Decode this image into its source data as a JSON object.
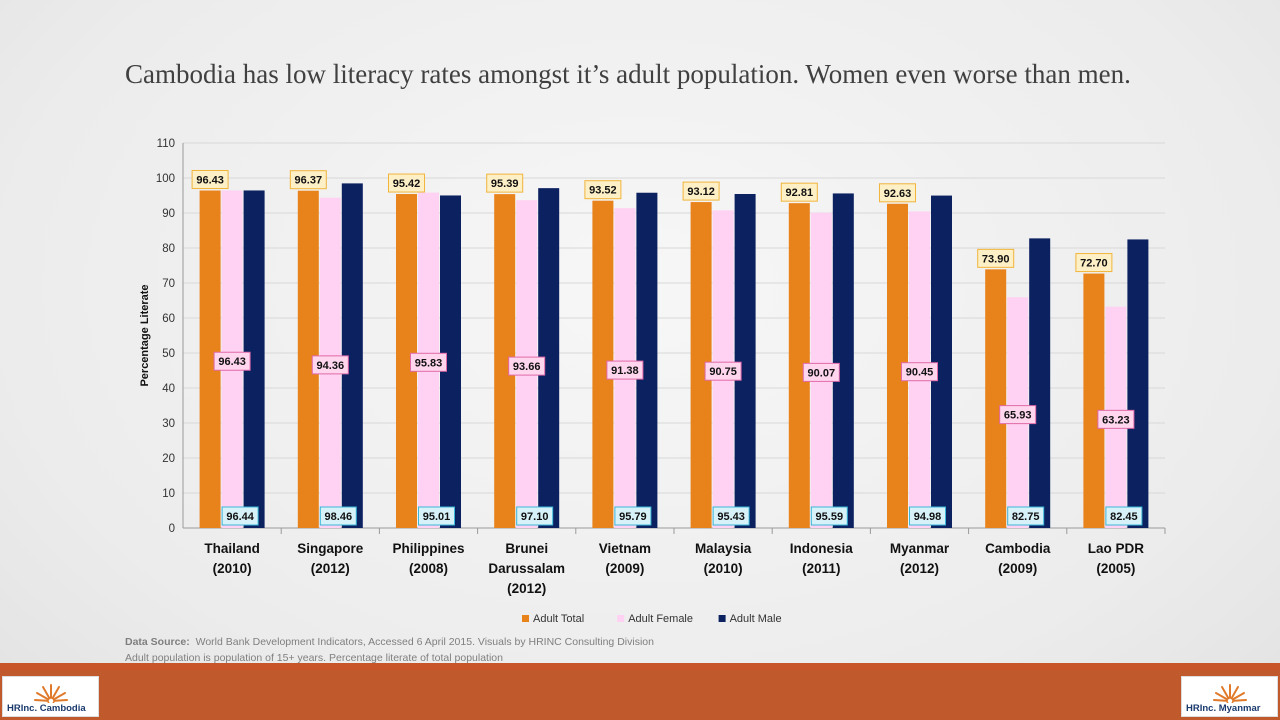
{
  "title": "Cambodia has low literacy rates amongst it’s adult population.  Women even worse than men.",
  "chart_data": {
    "type": "bar",
    "ylabel": "Percentage Literate",
    "ylim": [
      0,
      110
    ],
    "yticks": [
      "0",
      "10",
      "20",
      "30",
      "40",
      "50",
      "60",
      "70",
      "80",
      "90",
      "100",
      "110"
    ],
    "categories": [
      [
        "Thailand",
        "(2010)"
      ],
      [
        "Singapore",
        "(2012)"
      ],
      [
        "Philippines",
        "(2008)"
      ],
      [
        "Brunei",
        "Darussalam",
        "(2012)"
      ],
      [
        "Vietnam",
        "(2009)"
      ],
      [
        "Malaysia",
        "(2010)"
      ],
      [
        "Indonesia",
        "(2011)"
      ],
      [
        "Myanmar",
        "(2012)"
      ],
      [
        "Cambodia",
        "(2009)"
      ],
      [
        "Lao PDR",
        "(2005)"
      ]
    ],
    "series": [
      {
        "name": "Adult Total",
        "color": "#e8821b",
        "label_bg": "#fdefc6",
        "label_border": "#f1b53c",
        "values": [
          96.43,
          96.37,
          95.42,
          95.39,
          93.52,
          93.12,
          92.81,
          92.63,
          73.9,
          72.7
        ],
        "labels": [
          "96.43",
          "96.37",
          "95.42",
          "95.39",
          "93.52",
          "93.12",
          "92.81",
          "92.63",
          "73.90",
          "72.70"
        ]
      },
      {
        "name": "Adult Female",
        "color": "#ffd1f2",
        "label_bg": "#ffd6ee",
        "label_border": "#e06aa8",
        "values": [
          96.43,
          94.36,
          95.83,
          93.66,
          91.38,
          90.75,
          90.07,
          90.45,
          65.93,
          63.23
        ],
        "labels": [
          "96.43",
          "94.36",
          "95.83",
          "93.66",
          "91.38",
          "90.75",
          "90.07",
          "90.45",
          "65.93",
          "63.23"
        ]
      },
      {
        "name": "Adult Male",
        "color": "#0b2160",
        "label_bg": "#d6f1f8",
        "label_border": "#3ab6d8",
        "values": [
          96.44,
          98.46,
          95.01,
          97.1,
          95.79,
          95.43,
          95.59,
          94.98,
          82.75,
          82.45
        ],
        "labels": [
          "96.44",
          "98.46",
          "95.01",
          "97.10",
          "95.79",
          "95.43",
          "95.59",
          "94.98",
          "82.75",
          "82.45"
        ]
      }
    ]
  },
  "source": {
    "label": "Data Source:",
    "line1": "World Bank Development Indicators, Accessed 6 April 2015. Visuals by HRINC Consulting Division",
    "line2": "Adult population is population of 15+ years.  Percentage literate of total population"
  },
  "logos": {
    "left": "HRInc. Cambodia",
    "right": "HRInc. Myanmar",
    "accent": "#c05a2c"
  }
}
